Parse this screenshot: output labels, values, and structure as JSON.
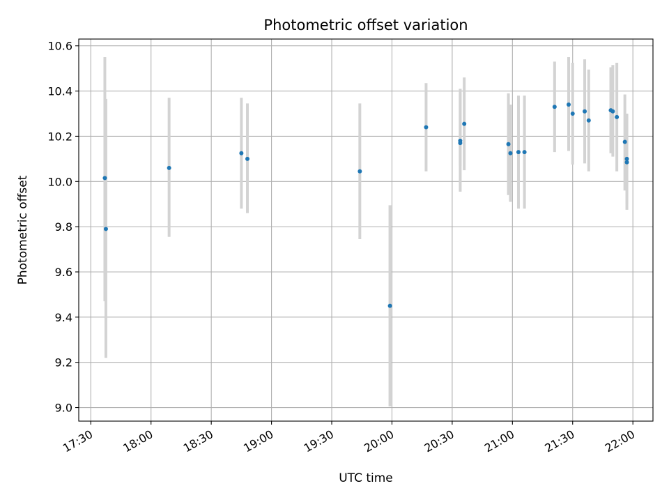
{
  "chart_data": {
    "type": "scatter",
    "title": "Photometric offset variation",
    "xlabel": "UTC time",
    "ylabel": "Photometric offset",
    "xlim": [
      "17:24",
      "22:10"
    ],
    "ylim": [
      8.94,
      10.63
    ],
    "grid": true,
    "x_ticks": [
      "17:30",
      "18:00",
      "18:30",
      "19:00",
      "19:30",
      "20:00",
      "20:30",
      "21:00",
      "21:30",
      "22:00"
    ],
    "y_ticks": [
      9.0,
      9.2,
      9.4,
      9.6,
      9.8,
      10.0,
      10.2,
      10.4,
      10.6
    ],
    "point_color": "#1f77b4",
    "errorbar_color": "#d3d3d3",
    "points": [
      {
        "time": "17:37",
        "y": 10.015,
        "low": 9.47,
        "high": 10.55
      },
      {
        "time": "17:37",
        "y": 9.79,
        "low": 9.22,
        "high": 10.365
      },
      {
        "time": "18:09",
        "y": 10.06,
        "low": 9.755,
        "high": 10.37
      },
      {
        "time": "18:45",
        "y": 10.125,
        "low": 9.88,
        "high": 10.37
      },
      {
        "time": "18:48",
        "y": 10.1,
        "low": 9.86,
        "high": 10.345
      },
      {
        "time": "19:44",
        "y": 10.045,
        "low": 9.745,
        "high": 10.345
      },
      {
        "time": "19:59",
        "y": 9.45,
        "low": 9.005,
        "high": 9.895
      },
      {
        "time": "20:17",
        "y": 10.24,
        "low": 10.045,
        "high": 10.435
      },
      {
        "time": "20:34",
        "y": 10.18,
        "low": 9.955,
        "high": 10.41
      },
      {
        "time": "20:34",
        "y": 10.17,
        "low": 10.07,
        "high": 10.39
      },
      {
        "time": "20:36",
        "y": 10.255,
        "low": 10.05,
        "high": 10.46
      },
      {
        "time": "20:58",
        "y": 10.165,
        "low": 9.94,
        "high": 10.39
      },
      {
        "time": "20:59",
        "y": 10.125,
        "low": 9.91,
        "high": 10.34
      },
      {
        "time": "21:03",
        "y": 10.13,
        "low": 9.88,
        "high": 10.38
      },
      {
        "time": "21:06",
        "y": 10.13,
        "low": 9.88,
        "high": 10.38
      },
      {
        "time": "21:21",
        "y": 10.33,
        "low": 10.13,
        "high": 10.53
      },
      {
        "time": "21:28",
        "y": 10.34,
        "low": 10.135,
        "high": 10.55
      },
      {
        "time": "21:30",
        "y": 10.3,
        "low": 10.075,
        "high": 10.525
      },
      {
        "time": "21:36",
        "y": 10.31,
        "low": 10.08,
        "high": 10.54
      },
      {
        "time": "21:38",
        "y": 10.27,
        "low": 10.045,
        "high": 10.495
      },
      {
        "time": "21:49",
        "y": 10.315,
        "low": 10.125,
        "high": 10.505
      },
      {
        "time": "21:50",
        "y": 10.31,
        "low": 10.11,
        "high": 10.515
      },
      {
        "time": "21:52",
        "y": 10.285,
        "low": 10.045,
        "high": 10.525
      },
      {
        "time": "21:56",
        "y": 10.175,
        "low": 9.96,
        "high": 10.385
      },
      {
        "time": "21:57",
        "y": 10.1,
        "low": 9.9,
        "high": 10.3
      },
      {
        "time": "21:57",
        "y": 10.085,
        "low": 9.875,
        "high": 10.295
      }
    ]
  }
}
